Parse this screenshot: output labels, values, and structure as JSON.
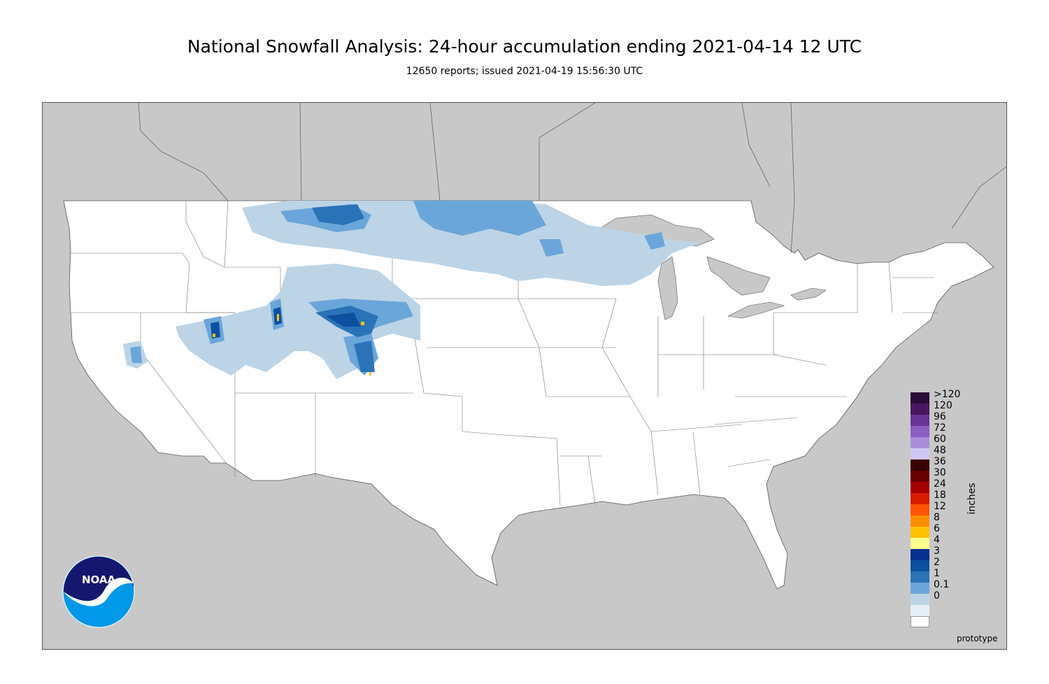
{
  "title": "National Snowfall Analysis: 24-hour accumulation ending 2021-04-14 12 UTC",
  "subtitle": "12650 reports; issued 2021-04-19 15:56:30 UTC",
  "legend": {
    "units": "inches",
    "labels": [
      ">120",
      "120",
      "96",
      "72",
      "60",
      "48",
      "36",
      "30",
      "24",
      "18",
      "12",
      "8",
      "6",
      "4",
      "3",
      "2",
      "1",
      "0.1",
      "0"
    ],
    "colors": [
      "#2a0a36",
      "#4b1661",
      "#6a3596",
      "#8a5dc2",
      "#a98fda",
      "#d0c8f4",
      "#3a0000",
      "#6a0000",
      "#a80000",
      "#d91c00",
      "#ff5500",
      "#ff8c00",
      "#ffc000",
      "#ffff8c",
      "#083093",
      "#0d4fa0",
      "#2a73b8",
      "#6aa6d9",
      "#bcd4e6",
      "#e6eef5",
      "#ffffff"
    ]
  },
  "footer": {
    "prototype": "prototype"
  },
  "logo": {
    "text": "NOAA"
  },
  "colors": {
    "land": "#ffffff",
    "outside": "#c8c8c8",
    "borders": "#666666"
  }
}
